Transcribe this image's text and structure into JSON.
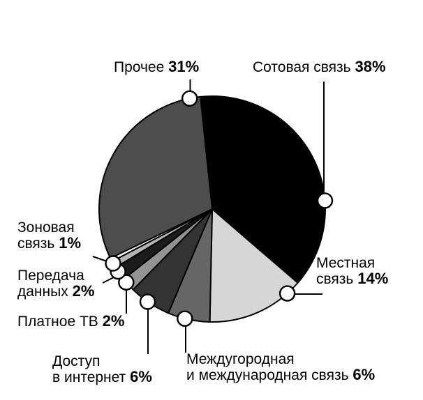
{
  "chart_data": {
    "type": "pie",
    "title": "",
    "unit": "%",
    "legend": "none",
    "start_angle_deg": -6,
    "direction": "clockwise",
    "slices": [
      {
        "label": "Сотовая связь",
        "value": 38,
        "color": "#000000",
        "marker_angle_deg": 85.7
      },
      {
        "label": "Местная связь",
        "value": 14,
        "color": "#d6d6d6",
        "marker_angle_deg": 138.4
      },
      {
        "label": "Междугородная и международная связь",
        "value": 6,
        "color": "#666666",
        "marker_angle_deg": 194.0
      },
      {
        "label": "Доступ в интернет",
        "value": 6,
        "color": "#333333",
        "marker_angle_deg": 214.8
      },
      {
        "label": "Платное ТВ",
        "value": 2,
        "color": "#939393",
        "marker_angle_deg": 229.5
      },
      {
        "label": "Передача данных",
        "value": 2,
        "color": "#1c1c1c",
        "marker_angle_deg": 236.4
      },
      {
        "label": "Зоновая связь",
        "value": 1,
        "color": "#b4b4b4",
        "marker_angle_deg": 241.2
      },
      {
        "label": "Прочее",
        "value": 31,
        "color": "#4d4d4d",
        "marker_angle_deg": 348.5,
        "lead_divider_deg": 1.8,
        "divider_color": "#ffffff"
      }
    ]
  },
  "callouts": {
    "other": {
      "text": "Прочее",
      "pct": "31%"
    },
    "cellular": {
      "text": "Сотовая связь",
      "pct": "38%"
    },
    "local": {
      "line1": "Местная",
      "line2": "связь",
      "pct": "14%"
    },
    "longdist": {
      "line1": "Междугородная",
      "line2": "и международная связь",
      "pct": "6%"
    },
    "internet": {
      "line1": "Доступ",
      "line2": "в интернет",
      "pct": "6%"
    },
    "paytv": {
      "text": "Платное ТВ",
      "pct": "2%"
    },
    "data_transfer": {
      "line1": "Передача",
      "line2": "данных",
      "pct": "2%"
    },
    "zone": {
      "line1": "Зоновая",
      "line2": "связь",
      "pct": "1%"
    }
  }
}
